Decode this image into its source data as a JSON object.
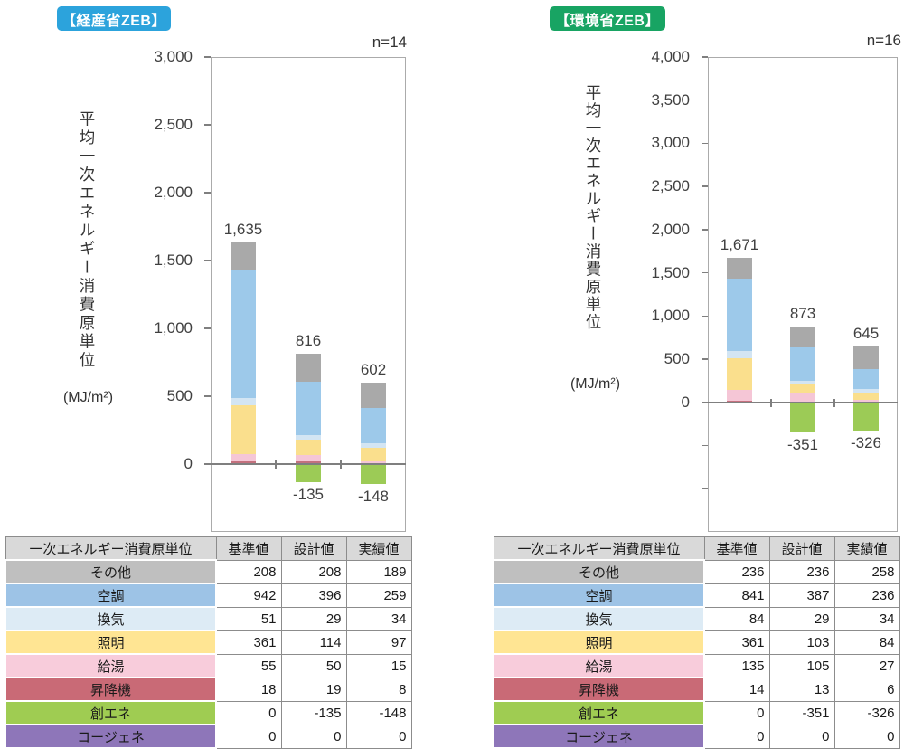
{
  "chart_data": [
    {
      "type": "bar",
      "stacked": true,
      "title": "【経産省ZEB】",
      "title_color": "#2CA3DC",
      "n_label": "n=14",
      "ylabel": "平均一次エネルギー消費原単位",
      "y_unit": "(MJ/m²)",
      "ylim": [
        -500,
        3000
      ],
      "ytick_step": 500,
      "ytick_labels": [
        "3,000",
        "2,500",
        "2,000",
        "1,500",
        "1,000",
        "500",
        "0"
      ],
      "unlabeled_ticks_below_zero": 0,
      "grid": false,
      "legend": "none",
      "categories": [
        "基準値",
        "設計値",
        "実績値"
      ],
      "series": [
        {
          "name": "その他",
          "chart_color": "#A9A9A9",
          "table_color": "#BFBFBF",
          "values": [
            208,
            208,
            189
          ]
        },
        {
          "name": "空調",
          "chart_color": "#9DC9EA",
          "table_color": "#9DC3E6",
          "values": [
            942,
            396,
            259
          ]
        },
        {
          "name": "換気",
          "chart_color": "#D3E5F3",
          "table_color": "#DDEBF5",
          "values": [
            51,
            29,
            34
          ]
        },
        {
          "name": "照明",
          "chart_color": "#FADF8D",
          "table_color": "#FFE593",
          "values": [
            361,
            114,
            97
          ]
        },
        {
          "name": "給湯",
          "chart_color": "#F5C6D6",
          "table_color": "#F8CCDB",
          "values": [
            55,
            50,
            15
          ]
        },
        {
          "name": "昇降機",
          "chart_color": "#C4717E",
          "table_color": "#C96A76",
          "values": [
            18,
            19,
            8
          ]
        },
        {
          "name": "創エネ",
          "chart_color": "#9CCB56",
          "table_color": "#9FCC52",
          "values": [
            0,
            -135,
            -148
          ]
        },
        {
          "name": "コージェネ",
          "chart_color": "#8E76B9",
          "table_color": "#8E76B9",
          "values": [
            0,
            0,
            0
          ]
        }
      ],
      "bar_total_labels": [
        "1,635",
        "816",
        "602"
      ],
      "bar_negative_labels": [
        "",
        "-135",
        "-148"
      ],
      "table_header": [
        "一次エネルギー消費原単位",
        "基準値",
        "設計値",
        "実績値"
      ],
      "table_header_bg": "#D9D9D9"
    },
    {
      "type": "bar",
      "stacked": true,
      "title": "【環境省ZEB】",
      "title_color": "#18A463",
      "n_label": "n=16",
      "ylabel": "平均一次エネルギー消費原単位",
      "y_unit": "(MJ/m²)",
      "ylim": [
        -1500,
        4000
      ],
      "ytick_step": 500,
      "ytick_labels": [
        "4,000",
        "3,500",
        "3,000",
        "2,500",
        "2,000",
        "1,500",
        "1,000",
        "500",
        "0"
      ],
      "unlabeled_ticks_below_zero": 2,
      "grid": false,
      "legend": "none",
      "categories": [
        "基準値",
        "設計値",
        "実績値"
      ],
      "series": [
        {
          "name": "その他",
          "chart_color": "#A9A9A9",
          "table_color": "#BFBFBF",
          "values": [
            236,
            236,
            258
          ]
        },
        {
          "name": "空調",
          "chart_color": "#9DC9EA",
          "table_color": "#9DC3E6",
          "values": [
            841,
            387,
            236
          ]
        },
        {
          "name": "換気",
          "chart_color": "#D3E5F3",
          "table_color": "#DDEBF5",
          "values": [
            84,
            29,
            34
          ]
        },
        {
          "name": "照明",
          "chart_color": "#FADF8D",
          "table_color": "#FFE593",
          "values": [
            361,
            103,
            84
          ]
        },
        {
          "name": "給湯",
          "chart_color": "#F5C6D6",
          "table_color": "#F8CCDB",
          "values": [
            135,
            105,
            27
          ]
        },
        {
          "name": "昇降機",
          "chart_color": "#C4717E",
          "table_color": "#C96A76",
          "values": [
            14,
            13,
            6
          ]
        },
        {
          "name": "創エネ",
          "chart_color": "#9CCB56",
          "table_color": "#9FCC52",
          "values": [
            0,
            -351,
            -326
          ]
        },
        {
          "name": "コージェネ",
          "chart_color": "#8E76B9",
          "table_color": "#8E76B9",
          "values": [
            0,
            0,
            0
          ]
        }
      ],
      "bar_total_labels": [
        "1,671",
        "873",
        "645"
      ],
      "bar_negative_labels": [
        "",
        "-351",
        "-326"
      ],
      "table_header": [
        "一次エネルギー消費原単位",
        "基準値",
        "設計値",
        "実績値"
      ],
      "table_header_bg": "#D9D9D9"
    }
  ]
}
